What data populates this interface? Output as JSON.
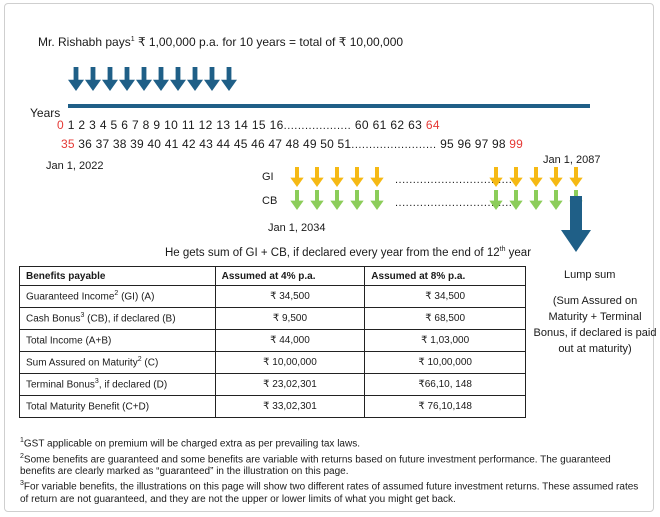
{
  "headline": {
    "pre": "Mr. Rishabh pays",
    "sup": "1",
    "post": " ₹ 1,00,000 p.a. for 10 years = total of ₹ 10,00,000"
  },
  "premium_arrows": {
    "count": 10,
    "color": "#1f5f87"
  },
  "timeline": {
    "years_label": "Years",
    "row1": {
      "start": "0",
      "middle": " 1  2  3  4  5  6  7  8  9 10  11 12 13 14  15 16",
      "dots": "...................",
      "tail": "  60  61  62 63 ",
      "end": "64"
    },
    "row2": {
      "start": "35",
      "middle": " 36 37 38 39 40 41 42 43 44 45 46 47 48 49  50 51",
      "dots": "........................",
      "tail": "  95  96  97 98 ",
      "end": "99"
    },
    "start_date": "Jan 1, 2022",
    "end_date": "Jan 1, 2087",
    "mid_date": "Jan 1, 2034",
    "accent_red": "#e53935",
    "line_color": "#1f5f87"
  },
  "payouts": {
    "gi_label": "GI",
    "cb_label": "CB",
    "gi_color": "#f5b914",
    "cb_color": "#8ccd5a",
    "dots": "..................................",
    "sum_text_pre": "He gets sum of GI + CB, if declared every year from the end of 12",
    "sum_text_sup": "th",
    "sum_text_post": " year"
  },
  "table": {
    "headers": [
      "Benefits payable",
      "Assumed at 4% p.a.",
      "Assumed at 8% p.a."
    ],
    "rows": [
      {
        "label": "Guaranteed Income",
        "sup": "2",
        "suffix": " (GI) (A)",
        "v4": "₹ 34,500",
        "v8": "₹ 34,500"
      },
      {
        "label": "Cash Bonus",
        "sup": "3",
        "suffix": " (CB), if declared (B)",
        "v4": "₹ 9,500",
        "v8": "₹ 68,500"
      },
      {
        "label": "Total Income (A+B)",
        "sup": "",
        "suffix": "",
        "v4": "₹ 44,000",
        "v8": "₹ 1,03,000"
      },
      {
        "label": "Sum Assured on Maturity",
        "sup": "2",
        "suffix": " (C)",
        "v4": "₹ 10,00,000",
        "v8": "₹ 10,00,000"
      },
      {
        "label": "Terminal Bonus",
        "sup": "3",
        "suffix": ", if declared (D)",
        "v4": "₹ 23,02,301",
        "v8": "₹66,10, 148"
      },
      {
        "label": "Total Maturity Benefit (C+D)",
        "sup": "",
        "suffix": "",
        "v4": "₹ 33,02,301",
        "v8": "₹ 76,10,148"
      }
    ]
  },
  "lump_sum": {
    "title": "Lump sum",
    "detail": "(Sum Assured on Maturity + Terminal Bonus, if declared is paid out at maturity)"
  },
  "footnotes": [
    {
      "sup": "1",
      "text": "GST applicable on premium will be charged extra as per prevailing tax laws."
    },
    {
      "sup": "2",
      "text": "Some benefits are guaranteed and some benefits are variable with returns based on future investment performance. The guaranteed benefits are clearly marked as “guaranteed” in the illustration on this page."
    },
    {
      "sup": "3",
      "text": "For variable benefits, the illustrations on this page will show two different rates of assumed future investment returns. These assumed rates of return are not guaranteed, and they are not the upper or lower limits of what you might get back."
    }
  ]
}
